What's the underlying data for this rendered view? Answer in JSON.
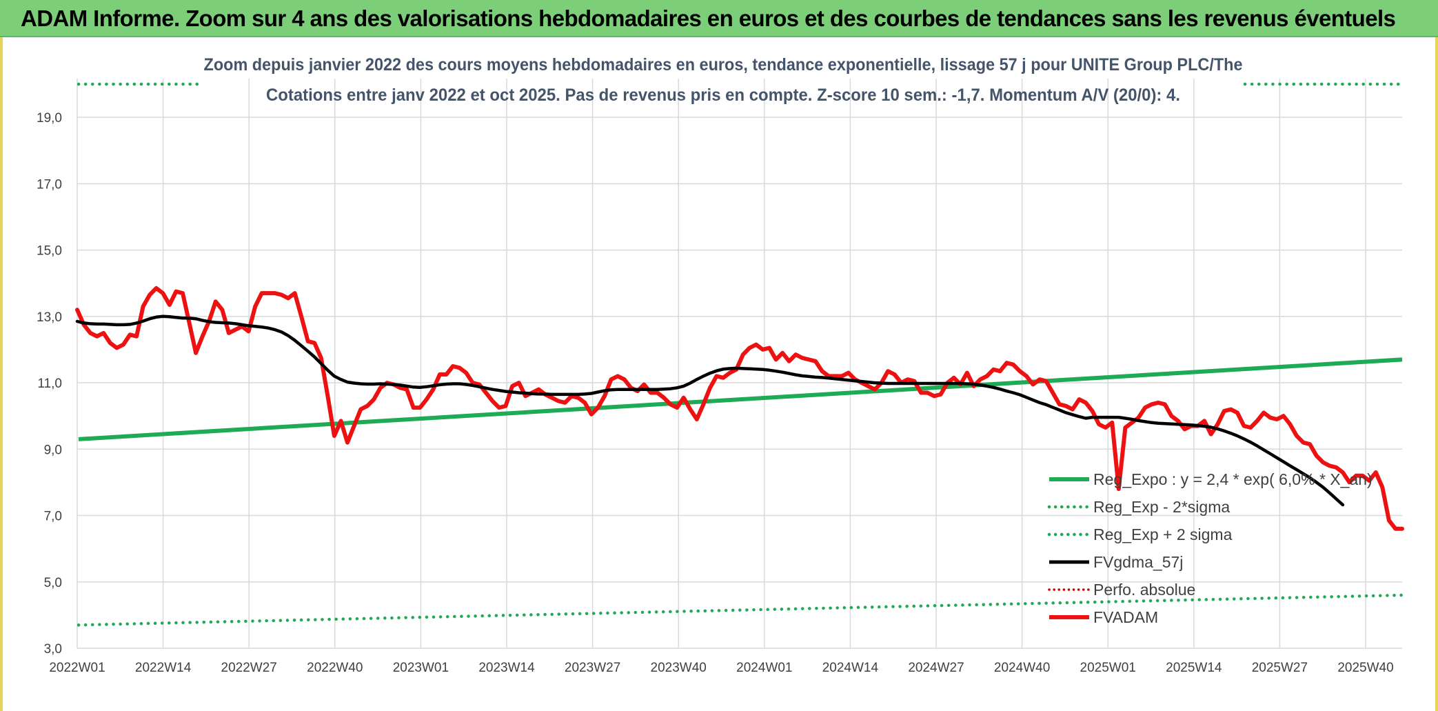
{
  "banner": {
    "title": "ADAM Informe. Zoom sur 4 ans des valorisations hebdomadaires en euros et des courbes de tendances sans les revenus éventuels"
  },
  "chart_data": {
    "type": "line",
    "title": "Zoom depuis janvier 2022 des cours moyens hebdomadaires en euros, tendance exponentielle, lissage 57 j pour UNITE Group PLC/The",
    "subtitle": "Cotations entre janv 2022 et oct 2025. Pas de revenus pris en compte. Z-score 10 sem.: -1,7. Momentum A/V (20/0): 4.",
    "ylim": [
      3.0,
      20.0
    ],
    "yticks": [
      "3,0",
      "5,0",
      "7,0",
      "9,0",
      "11,0",
      "13,0",
      "15,0",
      "17,0",
      "19,0"
    ],
    "ytick_values": [
      3,
      5,
      7,
      9,
      11,
      13,
      15,
      17,
      19
    ],
    "xticks": [
      "2022W01",
      "2022W14",
      "2022W27",
      "2022W40",
      "2023W01",
      "2023W14",
      "2023W27",
      "2023W40",
      "2024W01",
      "2024W14",
      "2024W27",
      "2024W40",
      "2025W01",
      "2025W14",
      "2025W27",
      "2025W40"
    ],
    "grid": true,
    "legend_position": "bottom-right",
    "colors": {
      "reg_expo": "#1faa55",
      "sigma": "#1faa55",
      "fvgdma": "#000000",
      "perfo": "#cc0000",
      "fvadam": "#ee1111",
      "grid": "#d9d9d9",
      "axis_text": "#404040",
      "title_text": "#44546a"
    },
    "series": [
      {
        "name": "Reg_Expo : y = 2,4 * exp( 6,0% *  X_an)",
        "key": "reg_expo",
        "start": 9.3,
        "end": 11.7
      },
      {
        "name": "Reg_Exp - 2*sigma",
        "key": "reg_exp_minus",
        "start": 3.7,
        "end": 4.6
      },
      {
        "name": "Reg_Exp + 2 sigma",
        "key": "reg_exp_plus",
        "value": 20.0
      },
      {
        "name": "FVgdma_57j",
        "key": "fvgdma",
        "values": [
          12.85,
          12.8,
          12.78,
          12.77,
          12.77,
          12.76,
          12.75,
          12.75,
          12.76,
          12.8,
          12.86,
          12.93,
          12.98,
          13.0,
          12.99,
          12.97,
          12.95,
          12.95,
          12.93,
          12.88,
          12.84,
          12.82,
          12.81,
          12.8,
          12.78,
          12.75,
          12.72,
          12.7,
          12.68,
          12.65,
          12.6,
          12.53,
          12.42,
          12.28,
          12.12,
          11.95,
          11.78,
          11.58,
          11.38,
          11.2,
          11.1,
          11.02,
          10.99,
          10.97,
          10.96,
          10.96,
          10.97,
          10.96,
          10.95,
          10.93,
          10.9,
          10.87,
          10.86,
          10.88,
          10.91,
          10.94,
          10.96,
          10.97,
          10.97,
          10.95,
          10.92,
          10.88,
          10.84,
          10.8,
          10.77,
          10.74,
          10.72,
          10.7,
          10.69,
          10.67,
          10.66,
          10.66,
          10.65,
          10.65,
          10.65,
          10.65,
          10.65,
          10.66,
          10.68,
          10.72,
          10.76,
          10.79,
          10.8,
          10.8,
          10.8,
          10.8,
          10.8,
          10.8,
          10.8,
          10.81,
          10.82,
          10.85,
          10.9,
          10.99,
          11.1,
          11.2,
          11.29,
          11.36,
          11.41,
          11.43,
          11.44,
          11.43,
          11.42,
          11.41,
          11.4,
          11.38,
          11.35,
          11.32,
          11.28,
          11.24,
          11.21,
          11.19,
          11.17,
          11.16,
          11.14,
          11.12,
          11.1,
          11.08,
          11.06,
          11.04,
          11.02,
          11.0,
          10.99,
          10.98,
          10.98,
          10.98,
          10.98,
          10.98,
          10.98,
          10.98,
          10.98,
          10.98,
          10.98,
          10.98,
          10.98,
          10.97,
          10.96,
          10.93,
          10.9,
          10.86,
          10.81,
          10.75,
          10.7,
          10.64,
          10.56,
          10.48,
          10.4,
          10.34,
          10.26,
          10.18,
          10.1,
          10.04,
          9.98,
          9.93,
          9.96,
          9.96,
          9.96,
          9.96,
          9.96,
          9.93,
          9.9,
          9.86,
          9.83,
          9.8,
          9.78,
          9.77,
          9.76,
          9.75,
          9.74,
          9.73,
          9.71,
          9.69,
          9.66,
          9.61,
          9.55,
          9.48,
          9.4,
          9.31,
          9.21,
          9.1,
          8.98,
          8.86,
          8.74,
          8.62,
          8.5,
          8.38,
          8.26,
          8.14,
          8.0,
          7.85,
          7.68,
          7.5,
          7.32
        ]
      },
      {
        "name": "Perfo. absolue",
        "key": "perfo"
      },
      {
        "name": "FVADAM",
        "key": "fvadam",
        "values": [
          13.2,
          12.75,
          12.5,
          12.4,
          12.5,
          12.2,
          12.05,
          12.15,
          12.45,
          12.4,
          13.3,
          13.65,
          13.85,
          13.7,
          13.35,
          13.75,
          13.7,
          12.8,
          11.9,
          12.4,
          12.85,
          13.45,
          13.2,
          12.5,
          12.6,
          12.7,
          12.55,
          13.3,
          13.7,
          13.7,
          13.7,
          13.65,
          13.55,
          13.7,
          13.0,
          12.25,
          12.2,
          11.75,
          10.6,
          9.4,
          9.85,
          9.2,
          9.7,
          10.2,
          10.3,
          10.5,
          10.85,
          11.0,
          10.95,
          10.85,
          10.8,
          10.25,
          10.25,
          10.5,
          10.8,
          11.25,
          11.25,
          11.5,
          11.45,
          11.3,
          11.0,
          10.95,
          10.7,
          10.45,
          10.25,
          10.3,
          10.9,
          11.0,
          10.6,
          10.7,
          10.8,
          10.65,
          10.55,
          10.45,
          10.4,
          10.6,
          10.55,
          10.4,
          10.05,
          10.25,
          10.6,
          11.1,
          11.2,
          11.1,
          10.85,
          10.75,
          10.95,
          10.7,
          10.7,
          10.55,
          10.35,
          10.25,
          10.55,
          10.2,
          9.9,
          10.35,
          10.85,
          11.2,
          11.15,
          11.3,
          11.4,
          11.85,
          12.05,
          12.15,
          12.0,
          12.05,
          11.7,
          11.9,
          11.65,
          11.85,
          11.75,
          11.7,
          11.65,
          11.35,
          11.2,
          11.2,
          11.2,
          11.3,
          11.1,
          11.0,
          10.9,
          10.8,
          11.0,
          11.35,
          11.25,
          11.0,
          11.1,
          11.05,
          10.7,
          10.7,
          10.6,
          10.65,
          11.0,
          11.15,
          10.95,
          11.3,
          10.9,
          11.1,
          11.2,
          11.4,
          11.35,
          11.6,
          11.55,
          11.35,
          11.2,
          10.95,
          11.1,
          11.05,
          10.7,
          10.35,
          10.3,
          10.2,
          10.5,
          10.4,
          10.15,
          9.75,
          9.65,
          9.8,
          7.8,
          9.65,
          9.8,
          9.95,
          10.25,
          10.35,
          10.4,
          10.35,
          10.0,
          9.85,
          9.6,
          9.7,
          9.7,
          9.85,
          9.45,
          9.75,
          10.15,
          10.2,
          10.1,
          9.7,
          9.65,
          9.85,
          10.1,
          9.95,
          9.9,
          10.0,
          9.75,
          9.4,
          9.2,
          9.15,
          8.8,
          8.6,
          8.5,
          8.45,
          8.3,
          8.0,
          8.2,
          8.2,
          8.05,
          8.3,
          7.85,
          6.85,
          6.6,
          6.6
        ]
      }
    ]
  }
}
